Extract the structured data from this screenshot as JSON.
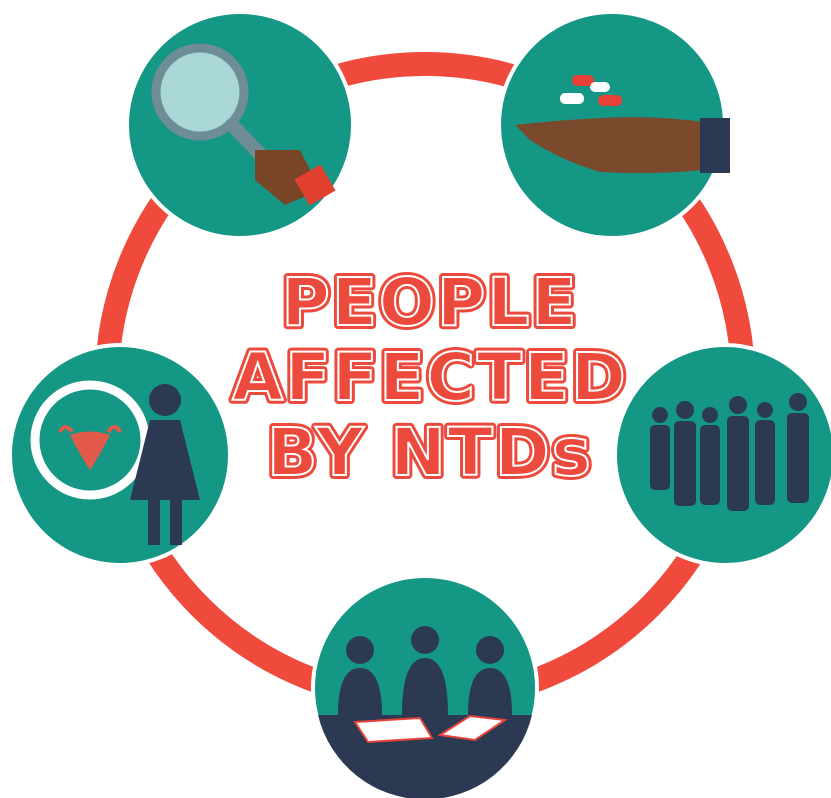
{
  "title": {
    "lines": [
      "PEOPLE",
      "AFFECTED",
      "BY NTDs"
    ]
  }
}
